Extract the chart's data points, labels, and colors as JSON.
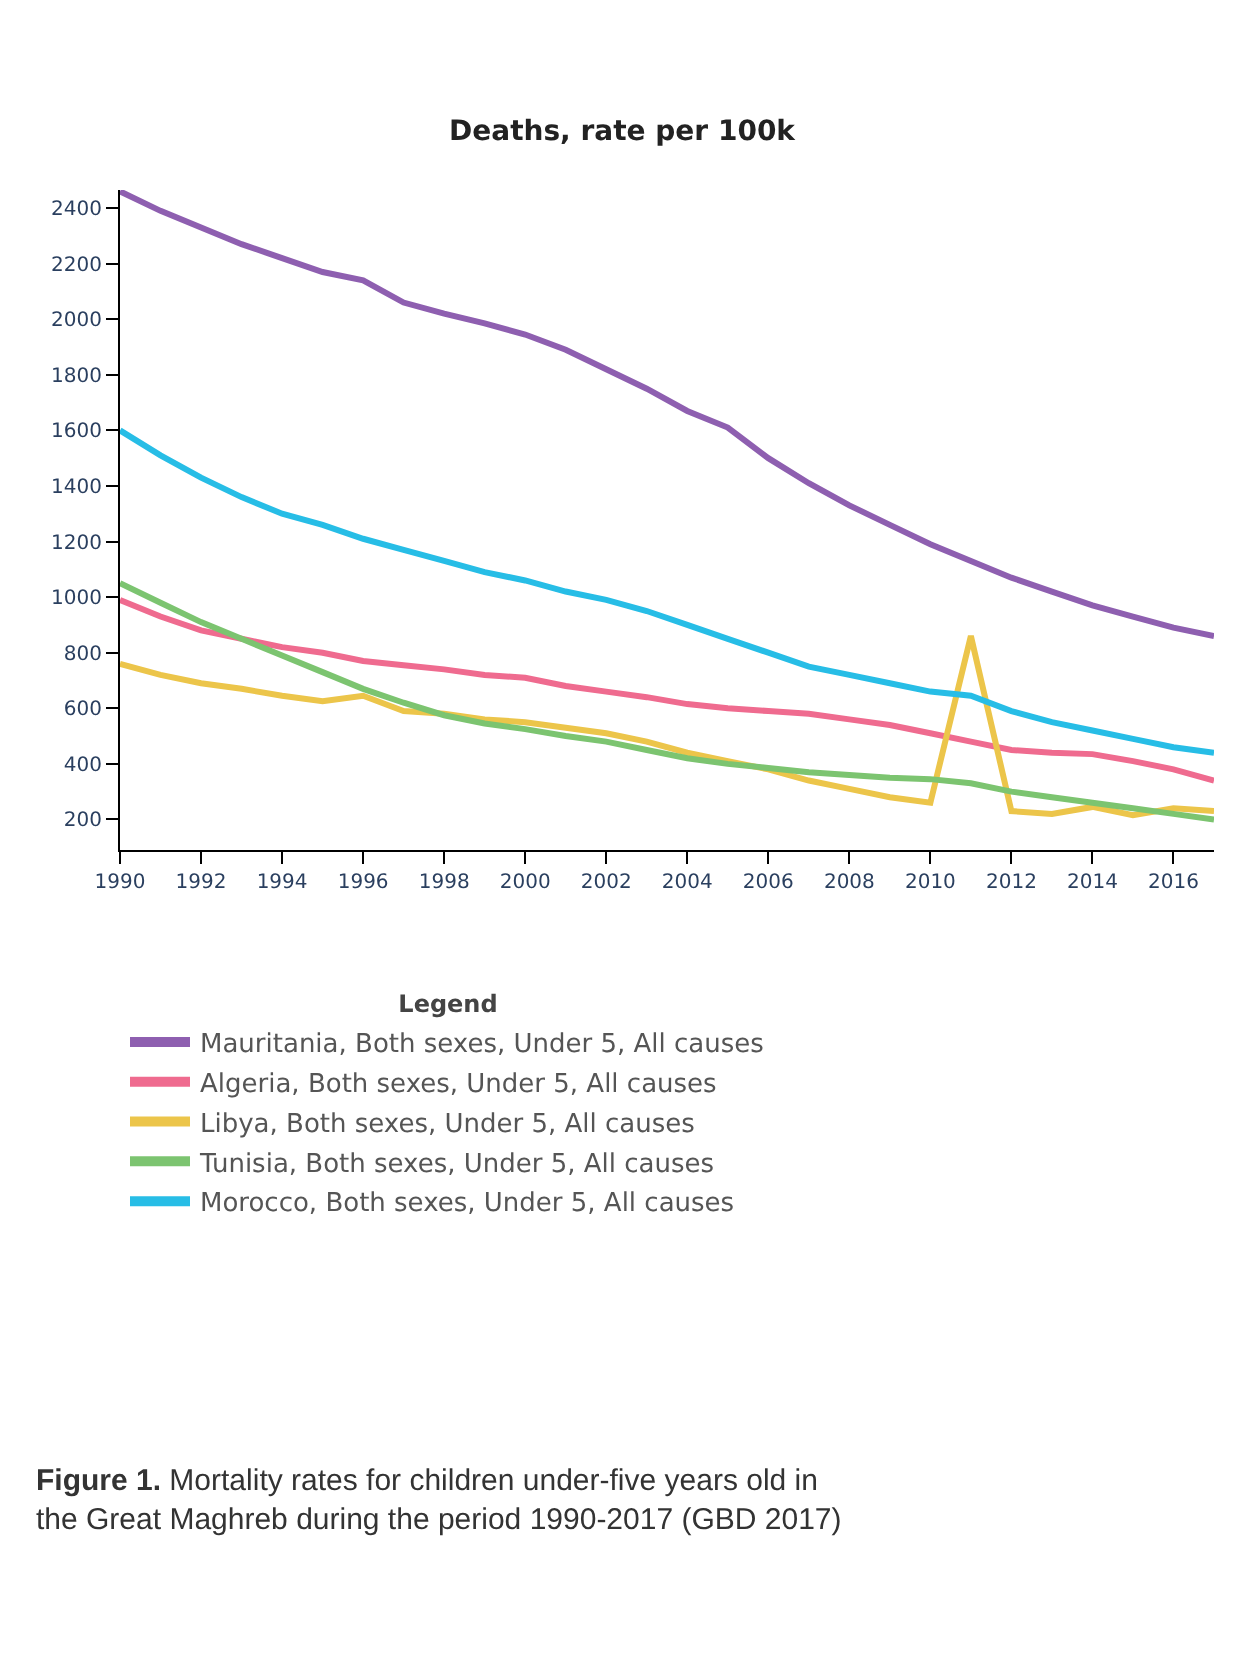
{
  "chart_data": {
    "type": "line",
    "title": "Deaths, rate per 100k",
    "legend_title": "Legend",
    "x": [
      1990,
      1991,
      1992,
      1993,
      1994,
      1995,
      1996,
      1997,
      1998,
      1999,
      2000,
      2001,
      2002,
      2003,
      2004,
      2005,
      2006,
      2007,
      2008,
      2009,
      2010,
      2011,
      2012,
      2013,
      2014,
      2015,
      2016,
      2017
    ],
    "series": [
      {
        "name": "Mauritania, Both sexes, Under 5, All causes",
        "color": "#8e5fb0",
        "values": [
          2460,
          2390,
          2330,
          2270,
          2220,
          2170,
          2140,
          2060,
          2020,
          1985,
          1945,
          1890,
          1820,
          1750,
          1670,
          1610,
          1500,
          1410,
          1330,
          1260,
          1190,
          1130,
          1070,
          1020,
          970,
          930,
          890,
          860
        ]
      },
      {
        "name": "Algeria, Both sexes, Under 5, All causes",
        "color": "#ef6b8f",
        "values": [
          990,
          930,
          880,
          850,
          820,
          800,
          770,
          755,
          740,
          720,
          710,
          680,
          660,
          640,
          615,
          600,
          590,
          580,
          560,
          540,
          510,
          480,
          450,
          440,
          435,
          410,
          380,
          340
        ]
      },
      {
        "name": "Libya, Both sexes, Under 5, All causes",
        "color": "#ecc54a",
        "values": [
          760,
          720,
          690,
          670,
          645,
          625,
          645,
          590,
          580,
          560,
          550,
          530,
          510,
          480,
          440,
          410,
          380,
          340,
          310,
          280,
          260,
          860,
          230,
          220,
          245,
          215,
          240,
          230
        ]
      },
      {
        "name": "Tunisia, Both sexes, Under 5, All causes",
        "color": "#7cc470",
        "values": [
          1050,
          980,
          910,
          850,
          790,
          730,
          670,
          620,
          575,
          545,
          525,
          500,
          480,
          450,
          420,
          400,
          385,
          370,
          360,
          350,
          345,
          330,
          300,
          280,
          260,
          240,
          220,
          200
        ]
      },
      {
        "name": "Morocco, Both sexes, Under 5, All causes",
        "color": "#27bde6",
        "values": [
          1600,
          1510,
          1430,
          1360,
          1300,
          1260,
          1210,
          1170,
          1130,
          1090,
          1060,
          1020,
          990,
          950,
          900,
          850,
          800,
          750,
          720,
          690,
          660,
          645,
          590,
          550,
          520,
          490,
          460,
          440
        ]
      }
    ],
    "xlim": [
      1990,
      2017
    ],
    "xticks": [
      1990,
      1992,
      1994,
      1996,
      1998,
      2000,
      2002,
      2004,
      2006,
      2008,
      2010,
      2012,
      2014,
      2016
    ],
    "ylim": [
      90,
      2465
    ],
    "yticks": [
      200,
      400,
      600,
      800,
      1000,
      1200,
      1400,
      1600,
      1800,
      2000,
      2200,
      2400
    ],
    "legend": "bottom",
    "marker": "none",
    "line_style": "solid",
    "annotations": [
      "Figure 1. Mortality rates for children under-five years old in the Great Maghreb during the period 1990-2017 (GBD 2017)"
    ]
  }
}
